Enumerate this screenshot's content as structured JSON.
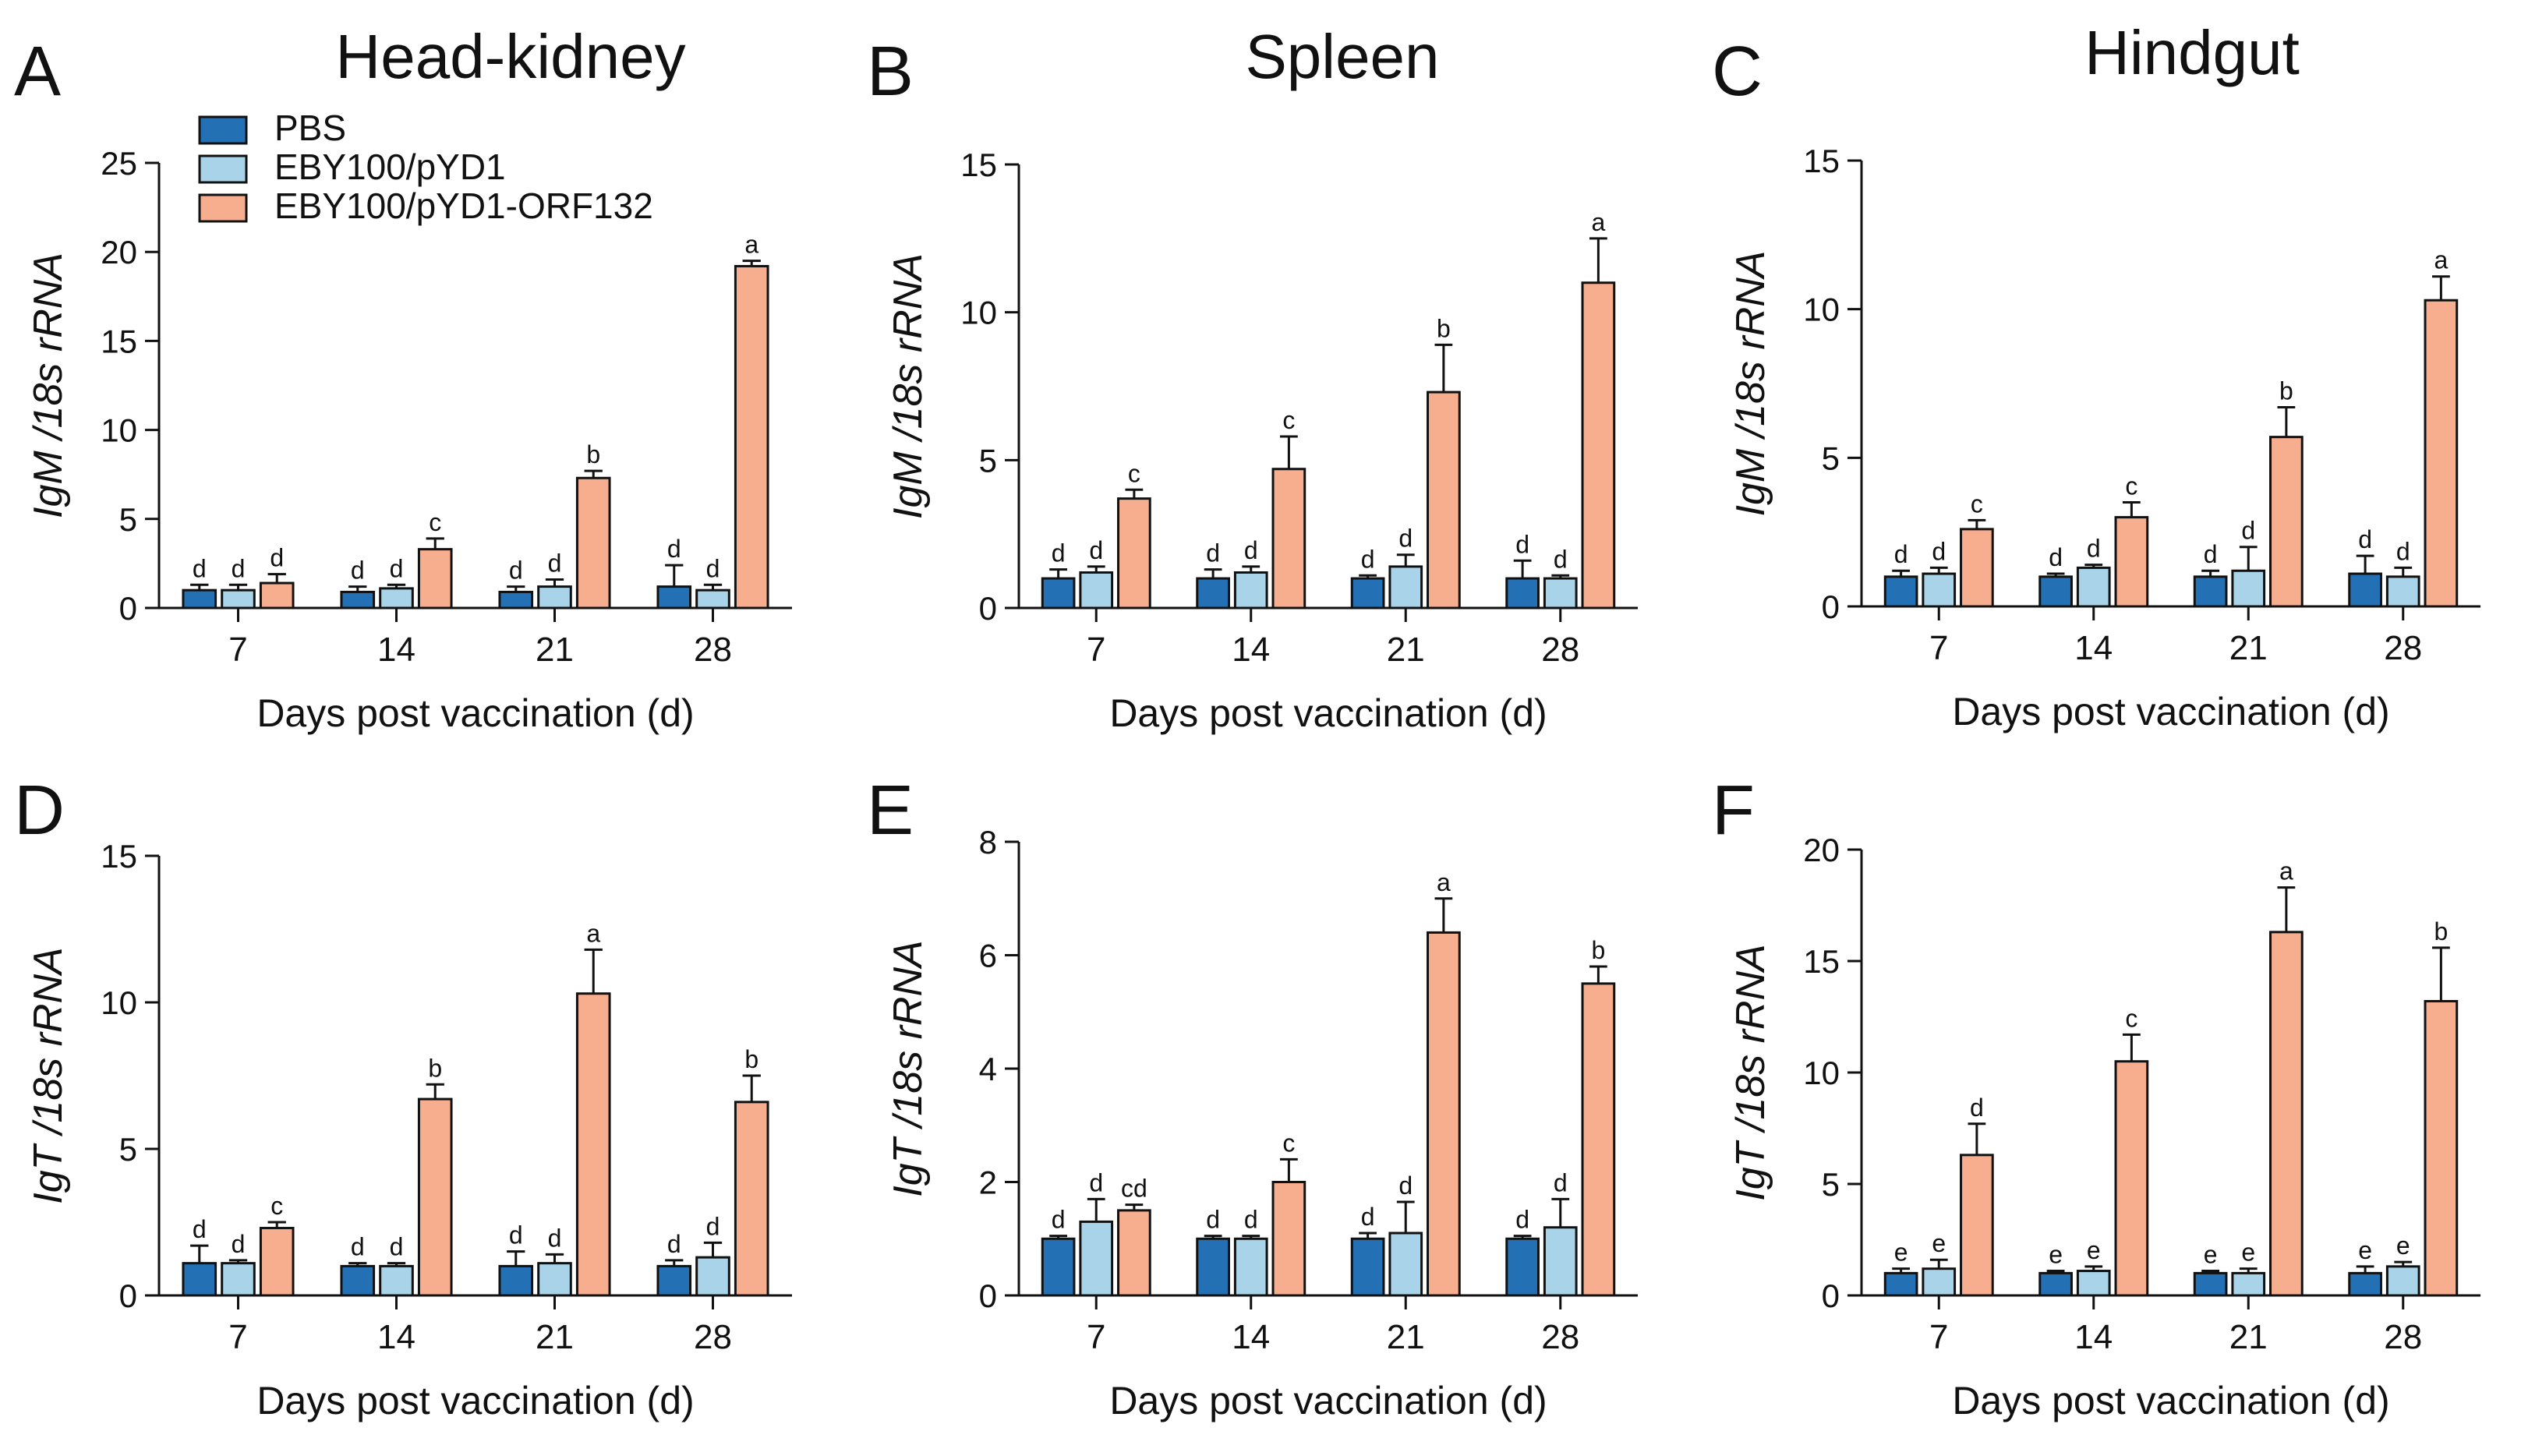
{
  "legend": {
    "items": [
      {
        "label": "PBS",
        "color": "#2470B4"
      },
      {
        "label": "EBY100/pYD1",
        "color": "#A8D3E8"
      },
      {
        "label": "EBY100/pYD1-ORF132",
        "color": "#F6AE8E"
      }
    ]
  },
  "chart_data": [
    {
      "panel": "A",
      "type": "bar",
      "title": "Head-kidney",
      "ylabel_gene": "IgM",
      "ylabel_rest": " /18s rRNA",
      "xlabel": "Days post vaccination (d)",
      "categories": [
        "7",
        "14",
        "21",
        "28"
      ],
      "ylim": [
        0,
        25
      ],
      "yticks": [
        0,
        5,
        10,
        15,
        20,
        25
      ],
      "series": [
        {
          "name": "PBS",
          "values": [
            1.0,
            0.9,
            0.9,
            1.2
          ],
          "errors": [
            0.3,
            0.3,
            0.3,
            1.2
          ],
          "letters": [
            "d",
            "d",
            "d",
            "d"
          ]
        },
        {
          "name": "EBY100/pYD1",
          "values": [
            1.0,
            1.1,
            1.2,
            1.0
          ],
          "errors": [
            0.3,
            0.2,
            0.4,
            0.3
          ],
          "letters": [
            "d",
            "d",
            "d",
            "d"
          ]
        },
        {
          "name": "EBY100/pYD1-ORF132",
          "values": [
            1.4,
            3.3,
            7.3,
            19.2
          ],
          "errors": [
            0.5,
            0.6,
            0.4,
            0.3
          ],
          "letters": [
            "d",
            "c",
            "b",
            "a"
          ]
        }
      ]
    },
    {
      "panel": "B",
      "type": "bar",
      "title": "Spleen",
      "ylabel_gene": "IgM",
      "ylabel_rest": " /18s rRNA",
      "xlabel": "Days post vaccination (d)",
      "categories": [
        "7",
        "14",
        "21",
        "28"
      ],
      "ylim": [
        0,
        15
      ],
      "yticks": [
        0,
        5,
        10,
        15
      ],
      "series": [
        {
          "name": "PBS",
          "values": [
            1.0,
            1.0,
            1.0,
            1.0
          ],
          "errors": [
            0.3,
            0.3,
            0.1,
            0.6
          ],
          "letters": [
            "d",
            "d",
            "d",
            "d"
          ]
        },
        {
          "name": "EBY100/pYD1",
          "values": [
            1.2,
            1.2,
            1.4,
            1.0
          ],
          "errors": [
            0.2,
            0.2,
            0.4,
            0.1
          ],
          "letters": [
            "d",
            "d",
            "d",
            "d"
          ]
        },
        {
          "name": "EBY100/pYD1-ORF132",
          "values": [
            3.7,
            4.7,
            7.3,
            11.0
          ],
          "errors": [
            0.3,
            1.1,
            1.6,
            1.5
          ],
          "letters": [
            "c",
            "c",
            "b",
            "a"
          ]
        }
      ]
    },
    {
      "panel": "C",
      "type": "bar",
      "title": "Hindgut",
      "ylabel_gene": "IgM",
      "ylabel_rest": " /18s rRNA",
      "xlabel": "Days post vaccination (d)",
      "categories": [
        "7",
        "14",
        "21",
        "28"
      ],
      "ylim": [
        0,
        15
      ],
      "yticks": [
        0,
        5,
        10,
        15
      ],
      "series": [
        {
          "name": "PBS",
          "values": [
            1.0,
            1.0,
            1.0,
            1.1
          ],
          "errors": [
            0.2,
            0.1,
            0.2,
            0.6
          ],
          "letters": [
            "d",
            "d",
            "d",
            "d"
          ]
        },
        {
          "name": "EBY100/pYD1",
          "values": [
            1.1,
            1.3,
            1.2,
            1.0
          ],
          "errors": [
            0.2,
            0.1,
            0.8,
            0.3
          ],
          "letters": [
            "d",
            "d",
            "d",
            "d"
          ]
        },
        {
          "name": "EBY100/pYD1-ORF132",
          "values": [
            2.6,
            3.0,
            5.7,
            10.3
          ],
          "errors": [
            0.3,
            0.5,
            1.0,
            0.8
          ],
          "letters": [
            "c",
            "c",
            "b",
            "a"
          ]
        }
      ]
    },
    {
      "panel": "D",
      "type": "bar",
      "title": "",
      "ylabel_gene": "IgT",
      "ylabel_rest": " /18s rRNA",
      "xlabel": "Days post vaccination (d)",
      "categories": [
        "7",
        "14",
        "21",
        "28"
      ],
      "ylim": [
        0,
        15
      ],
      "yticks": [
        0,
        5,
        10,
        15
      ],
      "series": [
        {
          "name": "PBS",
          "values": [
            1.1,
            1.0,
            1.0,
            1.0
          ],
          "errors": [
            0.6,
            0.1,
            0.5,
            0.2
          ],
          "letters": [
            "d",
            "d",
            "d",
            "d"
          ]
        },
        {
          "name": "EBY100/pYD1",
          "values": [
            1.1,
            1.0,
            1.1,
            1.3
          ],
          "errors": [
            0.1,
            0.1,
            0.3,
            0.5
          ],
          "letters": [
            "d",
            "d",
            "d",
            "d"
          ]
        },
        {
          "name": "EBY100/pYD1-ORF132",
          "values": [
            2.3,
            6.7,
            10.3,
            6.6
          ],
          "errors": [
            0.2,
            0.5,
            1.5,
            0.9
          ],
          "letters": [
            "c",
            "b",
            "a",
            "b"
          ]
        }
      ]
    },
    {
      "panel": "E",
      "type": "bar",
      "title": "",
      "ylabel_gene": "IgT",
      "ylabel_rest": " /18s rRNA",
      "xlabel": "Days post vaccination (d)",
      "categories": [
        "7",
        "14",
        "21",
        "28"
      ],
      "ylim": [
        0,
        8
      ],
      "yticks": [
        0,
        2,
        4,
        6,
        8
      ],
      "series": [
        {
          "name": "PBS",
          "values": [
            1.0,
            1.0,
            1.0,
            1.0
          ],
          "errors": [
            0.05,
            0.05,
            0.1,
            0.05
          ],
          "letters": [
            "d",
            "d",
            "d",
            "d"
          ]
        },
        {
          "name": "EBY100/pYD1",
          "values": [
            1.3,
            1.0,
            1.1,
            1.2
          ],
          "errors": [
            0.4,
            0.05,
            0.55,
            0.5
          ],
          "letters": [
            "d",
            "d",
            "d",
            "d"
          ]
        },
        {
          "name": "EBY100/pYD1-ORF132",
          "values": [
            1.5,
            2.0,
            6.4,
            5.5
          ],
          "errors": [
            0.1,
            0.4,
            0.6,
            0.3
          ],
          "letters": [
            "cd",
            "c",
            "a",
            "b"
          ]
        }
      ]
    },
    {
      "panel": "F",
      "type": "bar",
      "title": "",
      "ylabel_gene": "IgT",
      "ylabel_rest": " /18s rRNA",
      "xlabel": "Days post vaccination (d)",
      "categories": [
        "7",
        "14",
        "21",
        "28"
      ],
      "ylim": [
        0,
        20
      ],
      "yticks": [
        0,
        5,
        10,
        15,
        20
      ],
      "series": [
        {
          "name": "PBS",
          "values": [
            1.0,
            1.0,
            1.0,
            1.0
          ],
          "errors": [
            0.2,
            0.1,
            0.1,
            0.3
          ],
          "letters": [
            "e",
            "e",
            "e",
            "e"
          ]
        },
        {
          "name": "EBY100/pYD1",
          "values": [
            1.2,
            1.1,
            1.0,
            1.3
          ],
          "errors": [
            0.4,
            0.2,
            0.2,
            0.2
          ],
          "letters": [
            "e",
            "e",
            "e",
            "e"
          ]
        },
        {
          "name": "EBY100/pYD1-ORF132",
          "values": [
            6.3,
            10.5,
            16.3,
            13.2
          ],
          "errors": [
            1.4,
            1.2,
            2.0,
            2.4
          ],
          "letters": [
            "d",
            "c",
            "a",
            "b"
          ]
        }
      ]
    }
  ]
}
